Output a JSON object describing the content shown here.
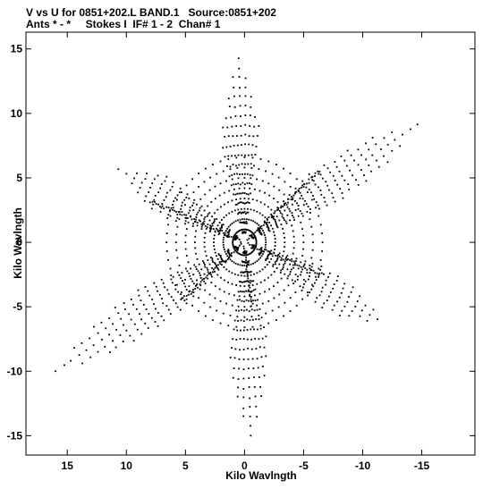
{
  "header": {
    "line1": "V vs U for 0851+202.L BAND.1   Source:0851+202",
    "line2": "Ants * - *     Stokes I  IF# 1 - 2  Chan# 1"
  },
  "chart_data": {
    "type": "scatter",
    "xlabel": "Kilo Wavlngth",
    "ylabel": "Kilo Wavlngth",
    "xlim": [
      18.5,
      -19.5
    ],
    "ylim": [
      -16.5,
      16.3
    ],
    "x_axis_reversed": true,
    "xticks": [
      15,
      10,
      5,
      0,
      -5,
      -10,
      -15
    ],
    "yticks": [
      15,
      10,
      5,
      0,
      -5,
      -10,
      -15
    ],
    "grid": false,
    "marker_color": "#000000",
    "pattern": {
      "description_free_params": true,
      "arm_angles_deg": [
        88,
        148,
        208,
        268,
        328,
        28
      ],
      "arm_lengths_kilo_wavelength": [
        14.9,
        17.4,
        13.5,
        15.2,
        19.1,
        12.2
      ],
      "arm_angular_span_deg": 24,
      "arm_base_radius_kilo_wavelength": 7.0,
      "dense_spoke_angles_deg": [
        139,
        201,
        320,
        22,
        263
      ],
      "dense_spoke_lengths_kilo_wavelength": [
        8.5,
        7.2,
        7.0,
        8.7,
        5.1
      ]
    }
  }
}
